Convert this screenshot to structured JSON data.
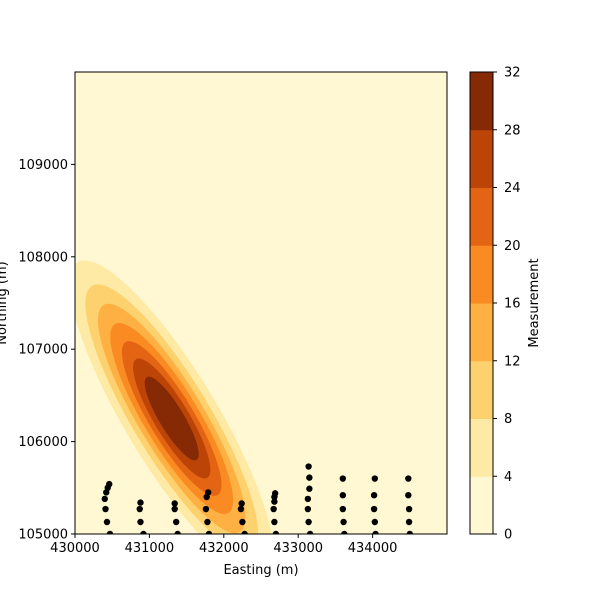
{
  "chart_data": {
    "type": "contour",
    "xlabel": "Easting (m)",
    "ylabel": "Northing (m)",
    "xlim": [
      430000,
      435000
    ],
    "ylim": [
      105000,
      110000
    ],
    "xticks": [
      430000,
      431000,
      432000,
      433000,
      434000
    ],
    "yticks": [
      105000,
      106000,
      107000,
      108000,
      109000
    ],
    "colorbar": {
      "label": "Measurement",
      "levels": [
        0,
        4,
        8,
        12,
        16,
        20,
        24,
        28,
        32
      ],
      "colors": [
        "#fff8d2",
        "#ffeaa5",
        "#fed16f",
        "#feb042",
        "#fa8a22",
        "#e36412",
        "#bd4407",
        "#862a05"
      ]
    },
    "plume": {
      "center": [
        431300,
        106250
      ],
      "axis_angle_deg": -59,
      "levels": [
        {
          "min": 4,
          "semi_major": 2450,
          "semi_minor": 620
        },
        {
          "min": 8,
          "semi_major": 2080,
          "semi_minor": 520
        },
        {
          "min": 12,
          "semi_major": 1780,
          "semi_minor": 440
        },
        {
          "min": 16,
          "semi_major": 1480,
          "semi_minor": 370
        },
        {
          "min": 20,
          "semi_major": 1200,
          "semi_minor": 300
        },
        {
          "min": 24,
          "semi_major": 930,
          "semi_minor": 235
        },
        {
          "min": 28,
          "semi_major": 650,
          "semi_minor": 165
        }
      ]
    },
    "samples": [
      [
        430460,
        105540
      ],
      [
        430440,
        105500
      ],
      [
        430420,
        105450
      ],
      [
        430400,
        105380
      ],
      [
        430410,
        105270
      ],
      [
        430430,
        105130
      ],
      [
        430470,
        105000
      ],
      [
        430880,
        105340
      ],
      [
        430870,
        105270
      ],
      [
        430880,
        105130
      ],
      [
        430920,
        105000
      ],
      [
        431340,
        105330
      ],
      [
        431340,
        105270
      ],
      [
        431360,
        105130
      ],
      [
        431380,
        105000
      ],
      [
        431790,
        105450
      ],
      [
        431770,
        105400
      ],
      [
        431760,
        105270
      ],
      [
        431780,
        105130
      ],
      [
        431800,
        105000
      ],
      [
        432240,
        105330
      ],
      [
        432230,
        105270
      ],
      [
        432250,
        105130
      ],
      [
        432280,
        105000
      ],
      [
        432690,
        105440
      ],
      [
        432680,
        105400
      ],
      [
        432680,
        105350
      ],
      [
        432670,
        105270
      ],
      [
        432680,
        105130
      ],
      [
        432700,
        105000
      ],
      [
        433140,
        105730
      ],
      [
        433150,
        105610
      ],
      [
        433150,
        105490
      ],
      [
        433130,
        105380
      ],
      [
        433130,
        105270
      ],
      [
        433140,
        105130
      ],
      [
        433160,
        105000
      ],
      [
        433600,
        105600
      ],
      [
        433600,
        105420
      ],
      [
        433600,
        105270
      ],
      [
        433610,
        105130
      ],
      [
        433620,
        105000
      ],
      [
        434030,
        105600
      ],
      [
        434020,
        105420
      ],
      [
        434020,
        105270
      ],
      [
        434030,
        105130
      ],
      [
        434040,
        105000
      ],
      [
        434480,
        105600
      ],
      [
        434480,
        105420
      ],
      [
        434490,
        105270
      ],
      [
        434490,
        105130
      ],
      [
        434500,
        105000
      ]
    ]
  }
}
